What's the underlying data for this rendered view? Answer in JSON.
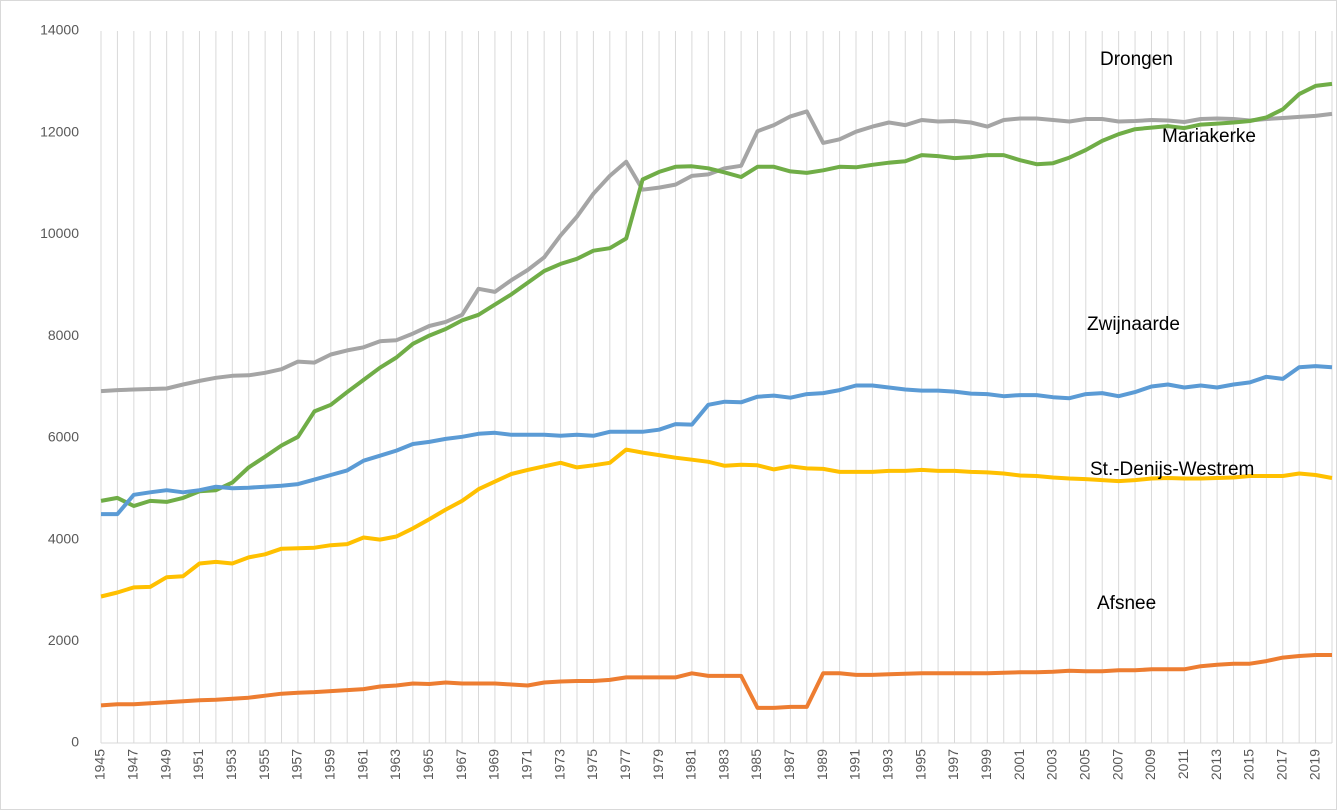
{
  "chart_data": {
    "type": "line",
    "categories": [
      "1945",
      null,
      "1947",
      null,
      "1949",
      null,
      "1951",
      null,
      "1953",
      null,
      "1955",
      null,
      "1957",
      null,
      "1959",
      null,
      "1961",
      null,
      "1963",
      null,
      "1965",
      null,
      "1967",
      null,
      "1969",
      null,
      "1971",
      null,
      "1973",
      null,
      "1975",
      null,
      "1977",
      null,
      "1979",
      null,
      "1981",
      null,
      "1983",
      null,
      "1985",
      null,
      "1987",
      null,
      "1989",
      null,
      "1991",
      null,
      "1993",
      null,
      "1995",
      null,
      "1997",
      null,
      "1999",
      null,
      "2001",
      null,
      "2003",
      null,
      "2005",
      null,
      "2007",
      null,
      "2009",
      null,
      "2011",
      null,
      "2013",
      null,
      "2015",
      null,
      "2017",
      null,
      "2019",
      null
    ],
    "ylim": [
      0,
      14000
    ],
    "yticks": [
      0,
      2000,
      4000,
      6000,
      8000,
      10000,
      12000,
      14000
    ],
    "grid": "x",
    "series": [
      {
        "name": "Drongen",
        "color": "#a5a5a5",
        "values": [
          6920,
          6940,
          6950,
          6960,
          6970,
          7050,
          7120,
          7180,
          7220,
          7230,
          7280,
          7350,
          7500,
          7480,
          7640,
          7720,
          7780,
          7900,
          7920,
          8050,
          8200,
          8280,
          8420,
          8930,
          8870,
          9100,
          9300,
          9550,
          9980,
          10350,
          10800,
          11150,
          11430,
          10880,
          10920,
          10980,
          11150,
          11180,
          11300,
          11350,
          12030,
          12150,
          12320,
          12420,
          11800,
          11870,
          12020,
          12120,
          12200,
          12150,
          12250,
          12220,
          12230,
          12200,
          12120,
          12250,
          12280,
          12280,
          12250,
          12220,
          12270,
          12270,
          12220,
          12230,
          12250,
          12240,
          12210,
          12270,
          12280,
          12270,
          12240,
          12270,
          12290,
          12310,
          12330,
          12370
        ]
      },
      {
        "name": "Mariakerke",
        "color": "#70ad47",
        "values": [
          4760,
          4820,
          4660,
          4760,
          4740,
          4820,
          4950,
          4970,
          5120,
          5420,
          5630,
          5850,
          6020,
          6520,
          6650,
          6900,
          7140,
          7380,
          7580,
          7850,
          8010,
          8140,
          8310,
          8420,
          8620,
          8820,
          9050,
          9280,
          9420,
          9520,
          9680,
          9730,
          9920,
          11080,
          11230,
          11330,
          11340,
          11300,
          11220,
          11130,
          11330,
          11330,
          11240,
          11210,
          11260,
          11330,
          11320,
          11370,
          11410,
          11440,
          11560,
          11540,
          11500,
          11520,
          11560,
          11560,
          11460,
          11380,
          11400,
          11510,
          11660,
          11840,
          11970,
          12070,
          12100,
          12130,
          12090,
          12160,
          12180,
          12200,
          12230,
          12300,
          12460,
          12760,
          12920,
          12960
        ]
      },
      {
        "name": "Zwijnaarde",
        "color": "#5b9bd5",
        "values": [
          4500,
          4500,
          4880,
          4930,
          4970,
          4930,
          4970,
          5040,
          5010,
          5020,
          5040,
          5060,
          5090,
          5180,
          5270,
          5360,
          5550,
          5650,
          5750,
          5880,
          5920,
          5980,
          6020,
          6080,
          6100,
          6060,
          6060,
          6060,
          6040,
          6060,
          6040,
          6120,
          6120,
          6120,
          6160,
          6270,
          6260,
          6650,
          6710,
          6700,
          6810,
          6830,
          6790,
          6860,
          6880,
          6940,
          7030,
          7030,
          6990,
          6950,
          6930,
          6930,
          6910,
          6870,
          6860,
          6820,
          6840,
          6840,
          6800,
          6780,
          6860,
          6880,
          6820,
          6900,
          7010,
          7050,
          6990,
          7030,
          6990,
          7050,
          7090,
          7200,
          7160,
          7390,
          7410,
          7390
        ]
      },
      {
        "name": "St.-Denijs-Westrem",
        "color": "#ffc000",
        "values": [
          2880,
          2960,
          3060,
          3070,
          3260,
          3280,
          3530,
          3560,
          3530,
          3650,
          3710,
          3820,
          3830,
          3840,
          3890,
          3910,
          4040,
          4000,
          4060,
          4220,
          4400,
          4590,
          4760,
          4990,
          5140,
          5290,
          5370,
          5440,
          5510,
          5420,
          5460,
          5510,
          5770,
          5710,
          5660,
          5610,
          5570,
          5530,
          5450,
          5470,
          5460,
          5380,
          5440,
          5400,
          5390,
          5330,
          5330,
          5330,
          5350,
          5350,
          5370,
          5350,
          5350,
          5330,
          5320,
          5300,
          5260,
          5250,
          5220,
          5200,
          5190,
          5170,
          5150,
          5170,
          5200,
          5210,
          5200,
          5200,
          5210,
          5220,
          5250,
          5250,
          5250,
          5300,
          5270,
          5210
        ]
      },
      {
        "name": "Afsnee",
        "color": "#ed7d31",
        "values": [
          740,
          760,
          760,
          780,
          800,
          820,
          840,
          850,
          870,
          890,
          930,
          970,
          990,
          1000,
          1020,
          1040,
          1060,
          1110,
          1130,
          1170,
          1160,
          1190,
          1170,
          1170,
          1170,
          1150,
          1130,
          1190,
          1210,
          1220,
          1220,
          1240,
          1290,
          1290,
          1290,
          1290,
          1370,
          1320,
          1320,
          1320,
          690,
          690,
          710,
          710,
          1370,
          1370,
          1340,
          1340,
          1350,
          1360,
          1370,
          1370,
          1370,
          1370,
          1370,
          1380,
          1390,
          1390,
          1400,
          1420,
          1410,
          1410,
          1430,
          1430,
          1450,
          1450,
          1450,
          1510,
          1540,
          1560,
          1560,
          1610,
          1680,
          1710,
          1730,
          1730
        ]
      }
    ]
  }
}
